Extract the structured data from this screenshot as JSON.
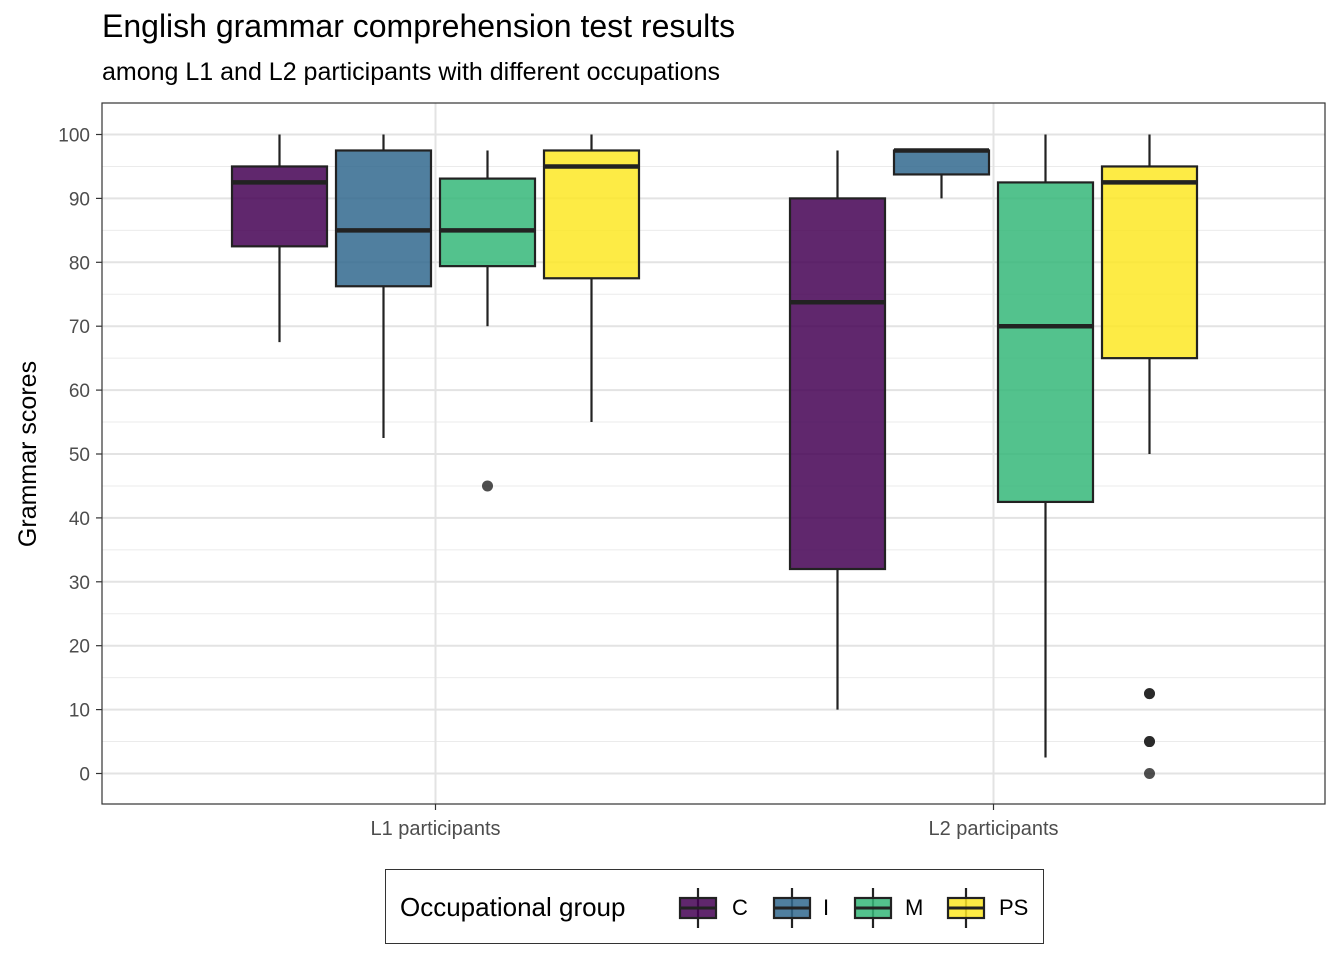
{
  "title": "English grammar comprehension test results",
  "subtitle": "among L1 and L2 participants with different occupations",
  "chart_data": {
    "type": "boxplot",
    "title": "English grammar comprehension test results",
    "subtitle": "among L1 and L2 participants with different occupations",
    "xlabel": "",
    "ylabel": "Grammar scores",
    "categories": [
      "L1 participants",
      "L2 participants"
    ],
    "y_ticks": [
      "0",
      "10",
      "20",
      "30",
      "40",
      "50",
      "60",
      "70",
      "80",
      "90",
      "100"
    ],
    "ylim": [
      -5,
      105
    ],
    "grid": true,
    "legend_title": "Occupational group",
    "legend_position": "bottom",
    "series": [
      {
        "name": "C",
        "color": "#440154",
        "boxes": [
          {
            "category": "L1 participants",
            "whisker_low": 67.5,
            "q1": 82.5,
            "median": 92.5,
            "q3": 95,
            "whisker_high": 100,
            "outliers": []
          },
          {
            "category": "L2 participants",
            "whisker_low": 10,
            "q1": 32,
            "median": 73.75,
            "q3": 90,
            "whisker_high": 97.5,
            "outliers": []
          }
        ]
      },
      {
        "name": "I",
        "color": "#31688E",
        "boxes": [
          {
            "category": "L1 participants",
            "whisker_low": 52.5,
            "q1": 76.25,
            "median": 85,
            "q3": 97.5,
            "whisker_high": 100,
            "outliers": []
          },
          {
            "category": "L2 participants",
            "whisker_low": 90,
            "q1": 93.75,
            "median": 97.5,
            "q3": 97.5,
            "whisker_high": 97.5,
            "outliers": []
          }
        ]
      },
      {
        "name": "M",
        "color": "#35B779",
        "boxes": [
          {
            "category": "L1 participants",
            "whisker_low": 70,
            "q1": 79.4,
            "median": 85,
            "q3": 93.1,
            "whisker_high": 97.5,
            "outliers": [
              45
            ]
          },
          {
            "category": "L2 participants",
            "whisker_low": 2.5,
            "q1": 42.5,
            "median": 70,
            "q3": 92.5,
            "whisker_high": 100,
            "outliers": []
          }
        ]
      },
      {
        "name": "PS",
        "color": "#FDE725",
        "boxes": [
          {
            "category": "L1 participants",
            "whisker_low": 55,
            "q1": 77.5,
            "median": 95,
            "q3": 97.5,
            "whisker_high": 100,
            "outliers": []
          },
          {
            "category": "L2 participants",
            "whisker_low": 50,
            "q1": 65,
            "median": 92.5,
            "q3": 95,
            "whisker_high": 100,
            "outliers": [
              12.5,
              12.5,
              5,
              5,
              0
            ]
          }
        ]
      }
    ]
  }
}
